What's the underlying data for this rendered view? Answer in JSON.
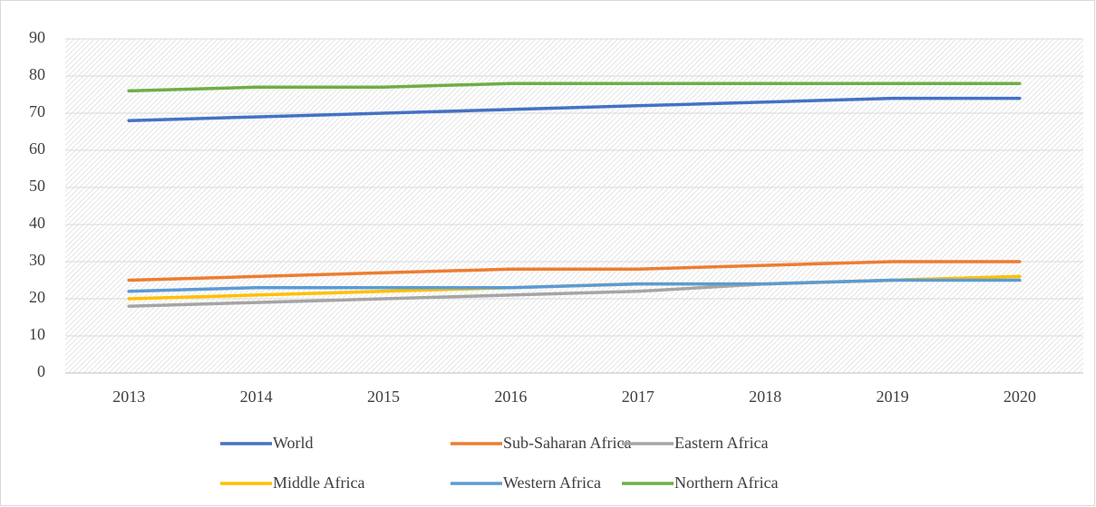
{
  "chart_data": {
    "type": "line",
    "categories": [
      "2013",
      "2014",
      "2015",
      "2016",
      "2017",
      "2018",
      "2019",
      "2020"
    ],
    "series": [
      {
        "name": "World",
        "color": "#4472c4",
        "values": [
          68,
          69,
          70,
          71,
          72,
          73,
          74,
          74
        ]
      },
      {
        "name": "Sub-Saharan Africa",
        "color": "#ed7d31",
        "values": [
          25,
          26,
          27,
          28,
          28,
          29,
          30,
          30
        ]
      },
      {
        "name": "Eastern Africa",
        "color": "#a5a5a5",
        "values": [
          18,
          19,
          20,
          21,
          22,
          24,
          25,
          26
        ]
      },
      {
        "name": "Middle Africa",
        "color": "#ffc000",
        "values": [
          20,
          21,
          22,
          23,
          24,
          24,
          25,
          26
        ]
      },
      {
        "name": "Western Africa",
        "color": "#5b9bd5",
        "values": [
          22,
          23,
          23,
          23,
          24,
          24,
          25,
          25
        ]
      },
      {
        "name": "Northern Africa",
        "color": "#70ad47",
        "values": [
          76,
          77,
          77,
          78,
          78,
          78,
          78,
          78
        ]
      }
    ],
    "ylim": [
      0,
      90
    ],
    "yticks": [
      0,
      10,
      20,
      30,
      40,
      50,
      60,
      70,
      80,
      90
    ],
    "grid": true,
    "legend": "bottom"
  }
}
